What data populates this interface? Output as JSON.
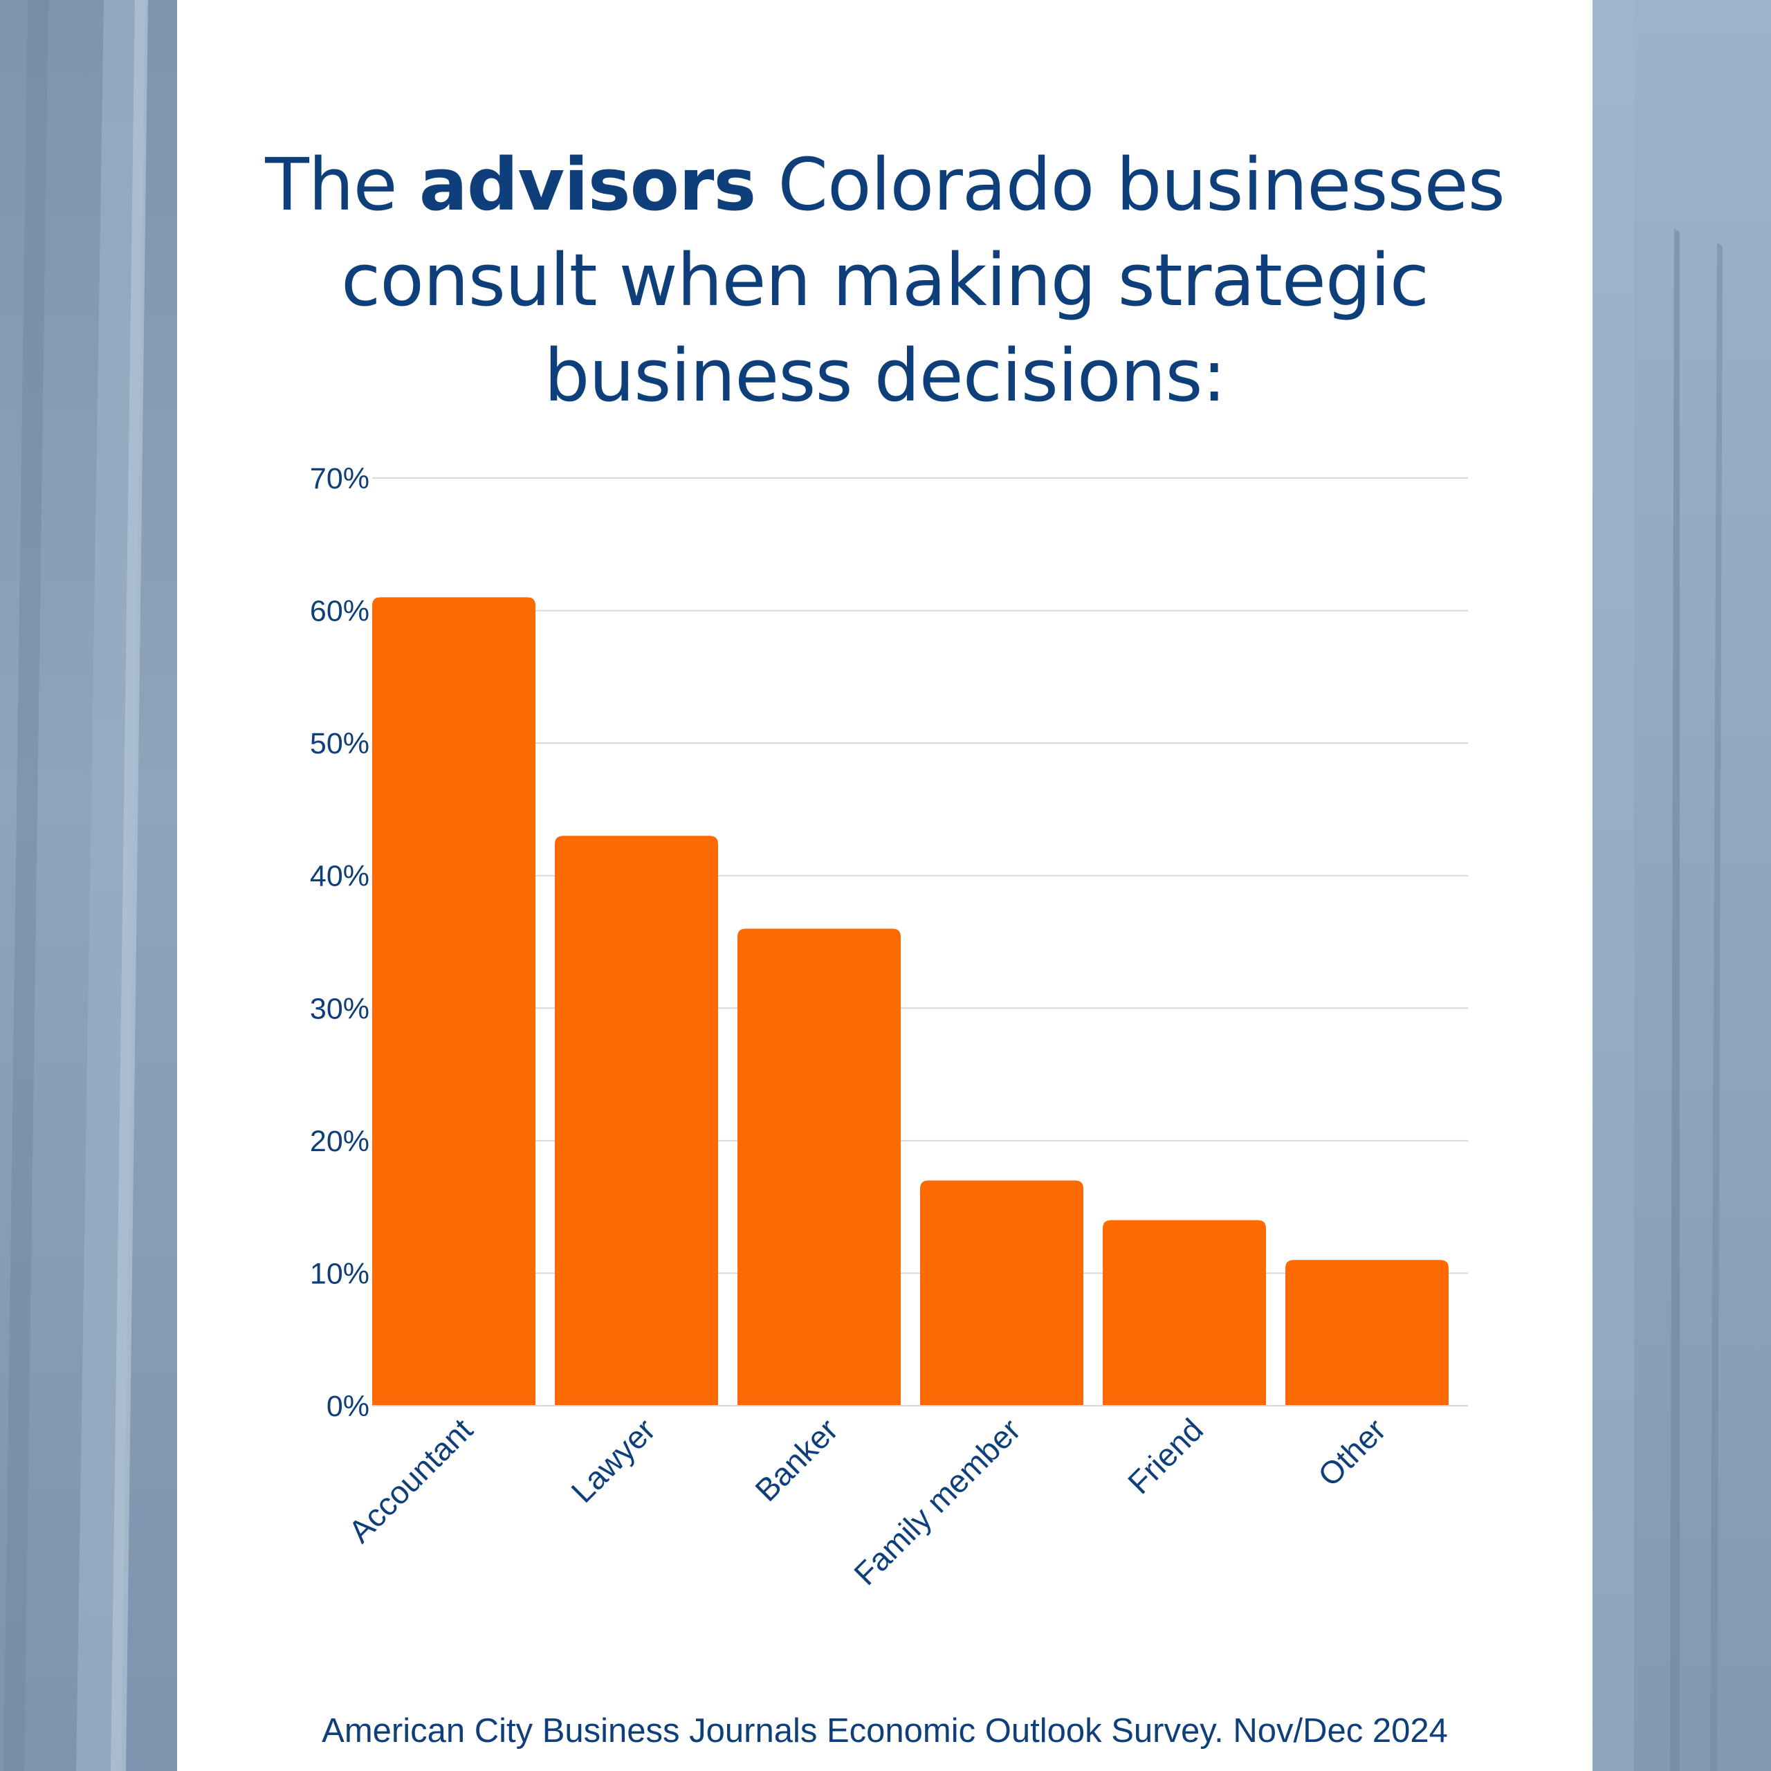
{
  "title": {
    "prefix": "The ",
    "bold": "advisors",
    "rest_line1": " Colorado businesses",
    "line2": "consult when making strategic",
    "line3": "business decisions:"
  },
  "source": "American City Business Journals Economic Outlook Survey. Nov/Dec 2024",
  "colors": {
    "bar": "#fd6a03",
    "title": "#0e3f7a",
    "axis_text": "#0e3f7a",
    "grid": "#d9d9d9",
    "card": "#ffffff"
  },
  "chart_data": {
    "type": "bar",
    "title": "The advisors Colorado businesses consult when making strategic business decisions:",
    "categories": [
      "Accountant",
      "Lawyer",
      "Banker",
      "Family member",
      "Friend",
      "Other"
    ],
    "values": [
      61,
      43,
      36,
      17,
      14,
      11
    ],
    "unit": "%",
    "ylim": [
      0,
      70
    ],
    "yticks": [
      0,
      10,
      20,
      30,
      40,
      50,
      60,
      70
    ],
    "ytick_labels": [
      "0%",
      "10%",
      "20%",
      "30%",
      "40%",
      "50%",
      "60%",
      "70%"
    ],
    "xlabel": "",
    "ylabel": "",
    "grid": true,
    "legend": "none",
    "xtick_rotation": "diagonal"
  }
}
